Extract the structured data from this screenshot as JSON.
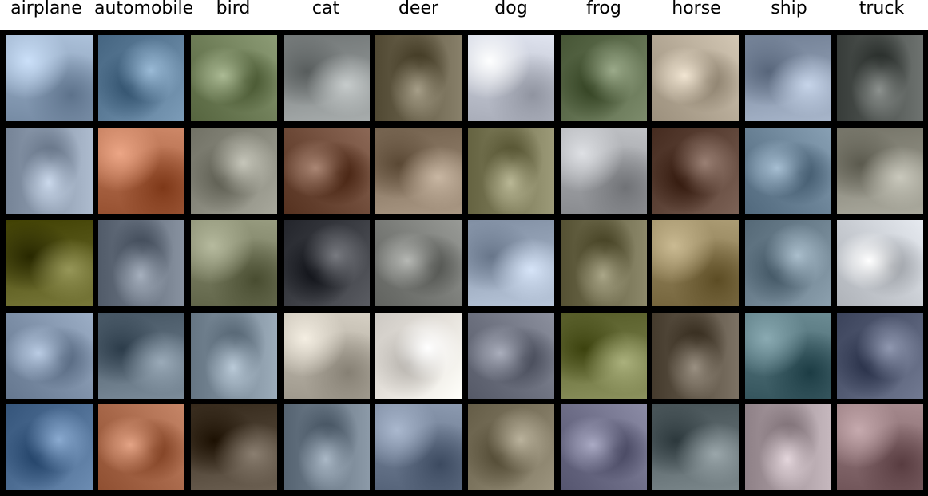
{
  "figure": {
    "column_labels": [
      "airplane",
      "automobile",
      "bird",
      "cat",
      "deer",
      "dog",
      "frog",
      "horse",
      "ship",
      "truck"
    ],
    "rows": 5,
    "columns": 10
  },
  "palette": {
    "background": "#ffffff",
    "grid_border": "#000000",
    "label_text": "#000000"
  },
  "tiles": [
    [
      "#8fa4bd",
      "#5e7e9a",
      "#6f7e58",
      "#8a8f8f",
      "#6a624c",
      "#c2c6d2",
      "#5f6e4e",
      "#b5a996",
      "#8a98ad",
      "#505552"
    ],
    [
      "#8f9db0",
      "#b06a4a",
      "#8a8a7e",
      "#6e4a38",
      "#8c7a66",
      "#7e7c5a",
      "#a2a4a8",
      "#5e4438",
      "#6a8296",
      "#8d8c80"
    ],
    [
      "#5a5a1c",
      "#6a7482",
      "#7a7e62",
      "#3c3e44",
      "#7a7c78",
      "#9aa8bc",
      "#6e6a4c",
      "#8e7e56",
      "#6e8290",
      "#c8ccd2"
    ],
    [
      "#7e90a8",
      "#5e6e7c",
      "#7e8e9c",
      "#b8b2a6",
      "#e6e2dc",
      "#6e7280",
      "#6e7440",
      "#5e5446",
      "#4e6e76",
      "#545c74"
    ],
    [
      "#4e6e94",
      "#a8684a",
      "#4e4234",
      "#6e7c8a",
      "#6e7c92",
      "#7e7660",
      "#6e6e88",
      "#5e6a6e",
      "#a89aa0",
      "#8a6e72"
    ]
  ]
}
